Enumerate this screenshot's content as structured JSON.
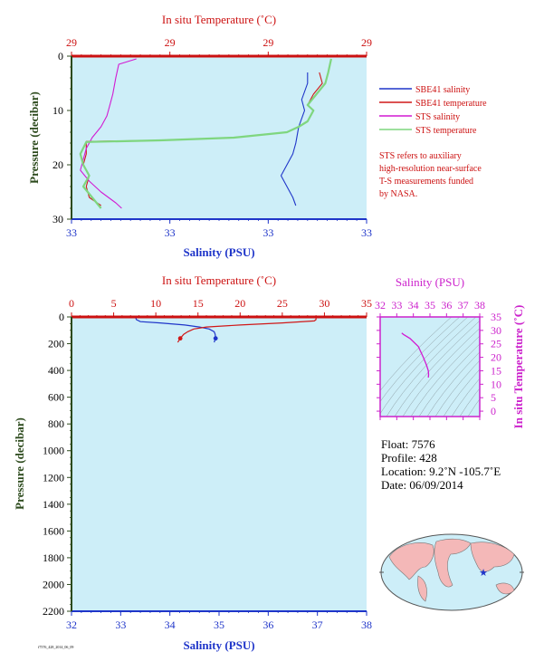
{
  "colors": {
    "sal": "#1f35c9",
    "temp": "#d01818",
    "sts_sal": "#d21ad2",
    "sts_temp": "#7fd67f",
    "plot_bg": "#cdeef8",
    "axis_red": "#cc1111",
    "axis_blue": "#1f35c9",
    "axis_green": "#2c4a1c",
    "magenta": "#cc22cc"
  },
  "top_chart": {
    "top_axis_title": "In situ Temperature (˚C)",
    "top_ticks": [
      "29",
      "29",
      "29",
      "29"
    ],
    "bottom_axis_title": "Salinity (PSU)",
    "bottom_ticks": [
      "33",
      "33",
      "33",
      "33"
    ],
    "y_title": "Pressure (decibar)",
    "y_ticks": [
      "0",
      "10",
      "20",
      "30"
    ]
  },
  "legend": {
    "items": [
      "SBE41 salinity",
      "SBE41 temperature",
      "STS salinity",
      "STS temperature"
    ],
    "note": [
      "STS refers to auxiliary",
      "high-resolution near-surface",
      "T-S measurements funded",
      "by NASA."
    ]
  },
  "bottom_chart": {
    "top_axis_title": "In situ Temperature (˚C)",
    "top_ticks": [
      "0",
      "5",
      "10",
      "15",
      "20",
      "25",
      "30",
      "35"
    ],
    "bottom_axis_title": "Salinity (PSU)",
    "bottom_ticks": [
      "32",
      "33",
      "34",
      "35",
      "36",
      "37",
      "38"
    ],
    "y_title": "Pressure (decibar)",
    "y_ticks": [
      "0",
      "200",
      "400",
      "600",
      "800",
      "1000",
      "1200",
      "1400",
      "1600",
      "1800",
      "2000",
      "2200"
    ]
  },
  "ts_chart": {
    "top_title": "Salinity (PSU)",
    "top_ticks": [
      "32",
      "33",
      "34",
      "35",
      "36",
      "37",
      "38"
    ],
    "right_title": "In situ Temperature (˚C)",
    "right_ticks": [
      "35",
      "30",
      "25",
      "20",
      "15",
      "10",
      "5",
      "0"
    ]
  },
  "float_info": {
    "float": "Float:  7576",
    "profile": "Profile:  428",
    "location": "Location:  9.2˚N  -105.7˚E",
    "date": "Date:  06/09/2014"
  },
  "footer_code": "f7576_428_2014_06_09",
  "chart_data": [
    {
      "type": "line",
      "title": "",
      "xlabel": "Salinity (PSU)",
      "x2label": "In situ Temperature (˚C)",
      "ylabel": "Pressure (decibar)",
      "ylim": [
        0,
        30
      ],
      "series": [
        {
          "name": "SBE41 salinity",
          "x_axis": "salinity_index",
          "points": [
            [
              0.8,
              3
            ],
            [
              0.8,
              5
            ],
            [
              0.78,
              8
            ],
            [
              0.79,
              10
            ],
            [
              0.77,
              13
            ],
            [
              0.76,
              16
            ],
            [
              0.75,
              18
            ],
            [
              0.73,
              20
            ],
            [
              0.71,
              22
            ],
            [
              0.73,
              24
            ],
            [
              0.75,
              26
            ],
            [
              0.76,
              27.5
            ]
          ]
        },
        {
          "name": "SBE41 temperature",
          "x_axis": "temperature_index",
          "points": [
            [
              0.84,
              3
            ],
            [
              0.85,
              5
            ],
            [
              0.82,
              7
            ],
            [
              0.8,
              9
            ],
            [
              0.82,
              10
            ],
            [
              0.8,
              12
            ],
            [
              0.77,
              13
            ],
            [
              0.73,
              14
            ],
            [
              0.55,
              15
            ],
            [
              0.3,
              15.5
            ],
            [
              0.05,
              15.7
            ],
            [
              0.05,
              18
            ],
            [
              0.04,
              20
            ],
            [
              0.06,
              22
            ],
            [
              0.05,
              24
            ],
            [
              0.06,
              26
            ],
            [
              0.1,
              27.5
            ]
          ]
        },
        {
          "name": "STS salinity",
          "x_axis": "salinity_index",
          "points": [
            [
              0.22,
              0.5
            ],
            [
              0.16,
              1.5
            ],
            [
              0.15,
              4
            ],
            [
              0.14,
              7
            ],
            [
              0.13,
              9
            ],
            [
              0.12,
              11
            ],
            [
              0.1,
              13
            ],
            [
              0.07,
              15
            ],
            [
              0.05,
              17
            ],
            [
              0.04,
              19
            ],
            [
              0.03,
              21
            ],
            [
              0.06,
              23
            ],
            [
              0.1,
              25
            ],
            [
              0.15,
              27
            ],
            [
              0.17,
              28
            ]
          ]
        },
        {
          "name": "STS temperature",
          "x_axis": "temperature_index",
          "points": [
            [
              0.88,
              0.5
            ],
            [
              0.87,
              3
            ],
            [
              0.86,
              5
            ],
            [
              0.83,
              7
            ],
            [
              0.8,
              9
            ],
            [
              0.82,
              10
            ],
            [
              0.8,
              12
            ],
            [
              0.77,
              13
            ],
            [
              0.73,
              14
            ],
            [
              0.55,
              15
            ],
            [
              0.3,
              15.5
            ],
            [
              0.05,
              15.8
            ],
            [
              0.03,
              18
            ],
            [
              0.04,
              20
            ],
            [
              0.06,
              22
            ],
            [
              0.04,
              24
            ],
            [
              0.07,
              26
            ],
            [
              0.1,
              28
            ]
          ]
        }
      ]
    },
    {
      "type": "line",
      "title": "",
      "xlabel": "Salinity (PSU)",
      "x2label": "In situ Temperature (˚C)",
      "ylabel": "Pressure (decibar)",
      "xlim": [
        32,
        38
      ],
      "x2lim": [
        0,
        35
      ],
      "ylim": [
        0,
        2200
      ],
      "series": [
        {
          "name": "SBE41 salinity",
          "x_axis": "salinity",
          "points": [
            [
              33.3,
              0
            ],
            [
              33.32,
              20
            ],
            [
              33.4,
              35
            ],
            [
              33.8,
              45
            ],
            [
              34.3,
              60
            ],
            [
              34.6,
              75
            ],
            [
              34.8,
              90
            ],
            [
              34.9,
              110
            ],
            [
              34.92,
              130
            ],
            [
              34.93,
              160
            ],
            [
              34.9,
              190
            ]
          ]
        },
        {
          "name": "SBE41 temperature",
          "x_axis": "temperature",
          "points": [
            [
              29.0,
              0
            ],
            [
              29.0,
              20
            ],
            [
              28.8,
              30
            ],
            [
              25.0,
              45
            ],
            [
              20.0,
              60
            ],
            [
              16.0,
              75
            ],
            [
              14.5,
              90
            ],
            [
              13.8,
              110
            ],
            [
              13.3,
              130
            ],
            [
              12.9,
              160
            ],
            [
              12.6,
              190
            ]
          ]
        }
      ]
    },
    {
      "type": "line",
      "title": "",
      "xlabel": "Salinity (PSU)",
      "ylabel": "In situ Temperature (˚C)",
      "xlim": [
        32,
        38
      ],
      "ylim": [
        -2,
        35
      ],
      "series": [
        {
          "name": "T-S",
          "points": [
            [
              33.3,
              29
            ],
            [
              33.4,
              28.5
            ],
            [
              33.8,
              27
            ],
            [
              34.3,
              24
            ],
            [
              34.6,
              20
            ],
            [
              34.8,
              17
            ],
            [
              34.9,
              15
            ],
            [
              34.92,
              13.5
            ],
            [
              34.9,
              12.5
            ]
          ]
        }
      ]
    }
  ]
}
